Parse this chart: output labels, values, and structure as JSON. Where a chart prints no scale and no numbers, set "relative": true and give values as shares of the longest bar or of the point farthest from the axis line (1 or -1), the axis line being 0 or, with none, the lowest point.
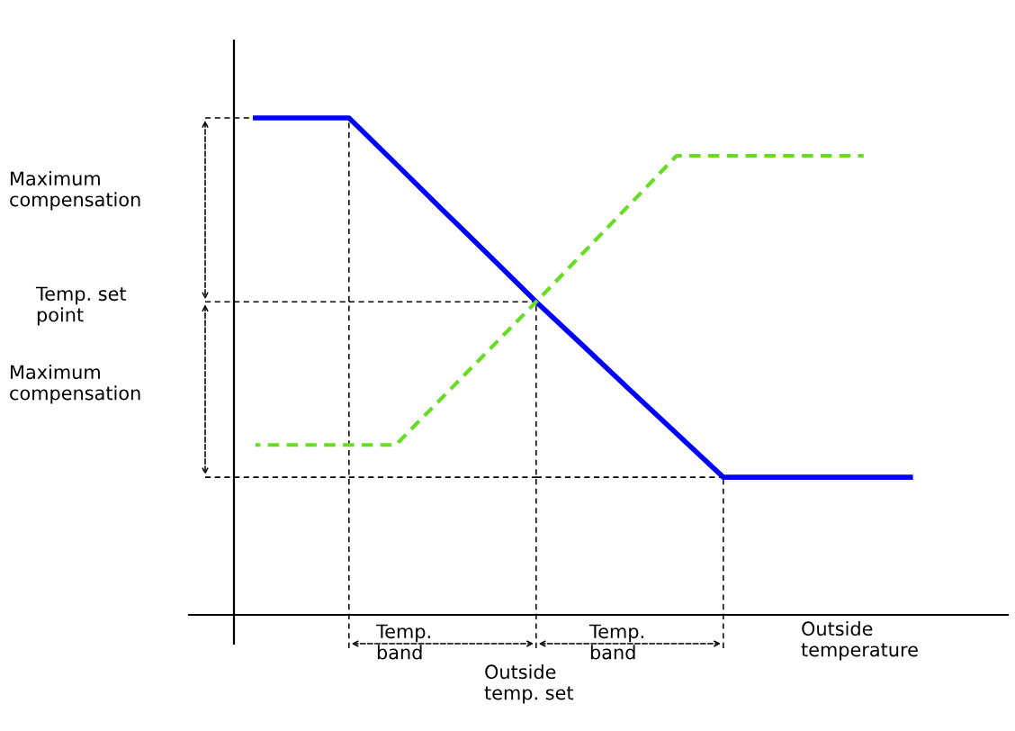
{
  "chart_data": {
    "type": "line",
    "relative": true,
    "xlabel": "Outside\ntemperature",
    "categories": [
      null,
      null,
      null,
      null,
      null,
      null,
      null,
      null,
      null,
      null,
      null,
      null,
      null,
      null,
      null
    ],
    "series": [
      {
        "color": "#0000ff",
        "line_style": "solid",
        "values": [
          1.0,
          1.0,
          1.0,
          0.908,
          0.815,
          0.723,
          0.63,
          0.542,
          0.453,
          0.365,
          0.277,
          0.277,
          0.277,
          0.277,
          0.277
        ]
      },
      {
        "color": "#66dd22",
        "line_style": "dashed",
        "values": [
          0.342,
          0.342,
          0.342,
          0.342,
          0.438,
          0.534,
          0.63,
          0.728,
          0.826,
          0.924,
          0.924,
          0.924,
          0.924,
          0.924,
          null
        ]
      }
    ],
    "annotations": [
      "Maximum\ncompensation",
      "Temp. set\npoint",
      "Maximum\ncompensation",
      "Temp.\nband",
      "Outside\ntemp. set",
      "Temp.\nband"
    ]
  }
}
